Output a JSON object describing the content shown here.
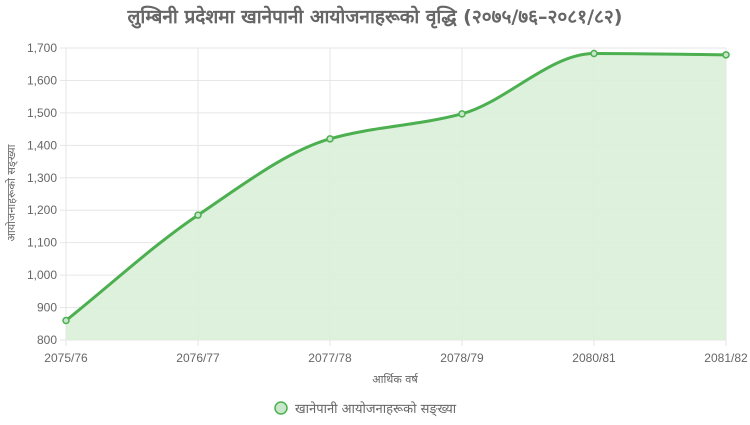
{
  "chart_data": {
    "type": "area",
    "title": "लुम्बिनी प्रदेशमा खानेपानी आयोजनाहरूको वृद्धि (२०७५/७६–२०८१/८२)",
    "xlabel": "आर्थिक वर्ष",
    "ylabel": "आयोजनाहरूको सङ्ख्या",
    "categories": [
      "2075/76",
      "2076/77",
      "2077/78",
      "2078/79",
      "2080/81",
      "2081/82"
    ],
    "series": [
      {
        "name": "खानेपानी आयोजनाहरूको सङ्ख्या",
        "values": [
          860,
          1185,
          1420,
          1497,
          1683,
          1679
        ]
      }
    ],
    "ylim": [
      800,
      1700
    ],
    "yticks": [
      800,
      900,
      1000,
      1100,
      1200,
      1300,
      1400,
      1500,
      1600,
      1700
    ],
    "ytick_labels": [
      "800",
      "900",
      "1,000",
      "1,100",
      "1,200",
      "1,300",
      "1,400",
      "1,500",
      "1,600",
      "1,700"
    ],
    "grid": true,
    "legend_position": "bottom",
    "colors": {
      "line": "#4caf50",
      "fill": "#d9efd9",
      "point": "#c8e6c9"
    }
  }
}
